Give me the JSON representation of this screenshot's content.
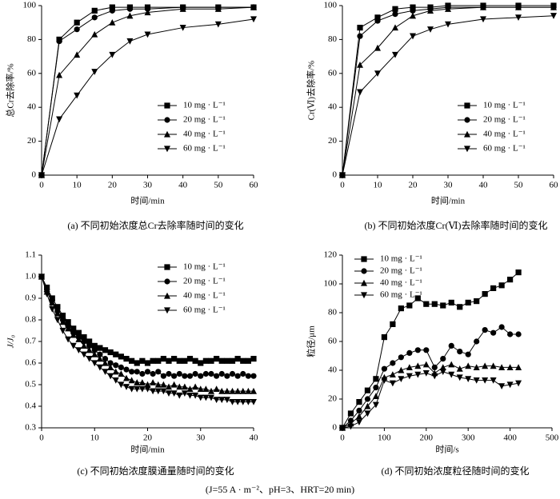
{
  "chart_data": [
    {
      "type": "line",
      "caption": "(a) 不同初始浓度总Cr去除率随时间的变化",
      "x_label": "时间/min",
      "y_label": "总Cr去除率/%",
      "x": [
        0,
        5,
        10,
        15,
        20,
        25,
        30,
        40,
        50,
        60
      ],
      "xlim": [
        0,
        60
      ],
      "xticks": [
        0,
        10,
        20,
        30,
        40,
        50,
        60
      ],
      "ylim": [
        0,
        100
      ],
      "yticks": [
        0,
        20,
        40,
        60,
        80,
        100
      ],
      "legend": "right",
      "series": [
        {
          "name": "10 mg · L⁻¹",
          "color": "#000000",
          "marker": "square",
          "values": [
            0,
            80,
            90,
            97,
            99,
            99,
            99,
            99,
            99,
            99
          ]
        },
        {
          "name": "20 mg · L⁻¹",
          "color": "#000000",
          "marker": "circle",
          "values": [
            0,
            79,
            86,
            93,
            97,
            98,
            98,
            99,
            99,
            99
          ]
        },
        {
          "name": "40 mg · L⁻¹",
          "color": "#000000",
          "marker": "triangle-up",
          "values": [
            0,
            59,
            71,
            83,
            90,
            94,
            96,
            98,
            98,
            99
          ]
        },
        {
          "name": "60 mg · L⁻¹",
          "color": "#000000",
          "marker": "triangle-down",
          "values": [
            0,
            33,
            47,
            61,
            71,
            79,
            83,
            87,
            89,
            92
          ]
        }
      ]
    },
    {
      "type": "line",
      "caption": "(b) 不同初始浓度Cr(Ⅵ)去除率随时间的变化",
      "x_label": "时间/min",
      "y_label": "Cr(Ⅵ)去除率/%",
      "x": [
        0,
        5,
        10,
        15,
        20,
        25,
        30,
        40,
        50,
        60
      ],
      "xlim": [
        0,
        60
      ],
      "xticks": [
        0,
        10,
        20,
        30,
        40,
        50,
        60
      ],
      "ylim": [
        0,
        100
      ],
      "yticks": [
        0,
        20,
        40,
        60,
        80,
        100
      ],
      "legend": "right",
      "series": [
        {
          "name": "10 mg · L⁻¹",
          "color": "#000000",
          "marker": "square",
          "values": [
            0,
            87,
            93,
            98,
            99,
            99,
            100,
            100,
            100,
            100
          ]
        },
        {
          "name": "20 mg · L⁻¹",
          "color": "#000000",
          "marker": "circle",
          "values": [
            0,
            82,
            91,
            95,
            97,
            98,
            99,
            99,
            99,
            99
          ]
        },
        {
          "name": "40 mg · L⁻¹",
          "color": "#000000",
          "marker": "triangle-up",
          "values": [
            0,
            65,
            75,
            87,
            94,
            97,
            98,
            99,
            99,
            99
          ]
        },
        {
          "name": "60 mg · L⁻¹",
          "color": "#000000",
          "marker": "triangle-down",
          "values": [
            0,
            49,
            60,
            71,
            82,
            86,
            89,
            92,
            93,
            94
          ]
        }
      ]
    },
    {
      "type": "line",
      "caption": "(c) 不同初始浓度膜通量随时间的变化",
      "x_label": "时间/min",
      "y_label": "J/J₀",
      "x": [
        0,
        1,
        2,
        3,
        4,
        5,
        6,
        7,
        8,
        9,
        10,
        11,
        12,
        13,
        14,
        15,
        16,
        17,
        18,
        19,
        20,
        21,
        22,
        23,
        24,
        25,
        26,
        27,
        28,
        29,
        30,
        31,
        32,
        33,
        34,
        35,
        36,
        37,
        38,
        39,
        40
      ],
      "xlim": [
        0,
        40
      ],
      "xticks": [
        0,
        10,
        20,
        30,
        40
      ],
      "ylim": [
        0.3,
        1.1
      ],
      "yticks": [
        0.3,
        0.4,
        0.5,
        0.6,
        0.7,
        0.8,
        0.9,
        {
          "value": 1,
          "label": "1.0"
        },
        1.1
      ],
      "legend": "upper right",
      "series": [
        {
          "name": "10 mg · L⁻¹",
          "color": "#000000",
          "marker": "square",
          "values": [
            1.0,
            0.95,
            0.9,
            0.86,
            0.82,
            0.79,
            0.76,
            0.74,
            0.72,
            0.7,
            0.68,
            0.67,
            0.66,
            0.65,
            0.64,
            0.63,
            0.62,
            0.61,
            0.6,
            0.61,
            0.6,
            0.61,
            0.61,
            0.62,
            0.61,
            0.62,
            0.61,
            0.61,
            0.62,
            0.61,
            0.6,
            0.61,
            0.61,
            0.62,
            0.61,
            0.61,
            0.61,
            0.62,
            0.61,
            0.61,
            0.62
          ]
        },
        {
          "name": "20 mg · L⁻¹",
          "color": "#000000",
          "marker": "circle",
          "values": [
            1.0,
            0.94,
            0.89,
            0.84,
            0.8,
            0.77,
            0.74,
            0.72,
            0.7,
            0.68,
            0.66,
            0.64,
            0.62,
            0.6,
            0.59,
            0.58,
            0.57,
            0.56,
            0.56,
            0.55,
            0.56,
            0.55,
            0.56,
            0.54,
            0.55,
            0.54,
            0.55,
            0.54,
            0.54,
            0.55,
            0.54,
            0.55,
            0.55,
            0.54,
            0.55,
            0.54,
            0.55,
            0.54,
            0.55,
            0.54,
            0.54
          ]
        },
        {
          "name": "40 mg · L⁻¹",
          "color": "#000000",
          "marker": "triangle-up",
          "values": [
            1.0,
            0.93,
            0.88,
            0.83,
            0.79,
            0.76,
            0.73,
            0.71,
            0.68,
            0.66,
            0.64,
            0.62,
            0.6,
            0.58,
            0.56,
            0.55,
            0.53,
            0.52,
            0.51,
            0.51,
            0.5,
            0.51,
            0.5,
            0.5,
            0.49,
            0.5,
            0.49,
            0.49,
            0.48,
            0.49,
            0.48,
            0.48,
            0.47,
            0.48,
            0.47,
            0.47,
            0.47,
            0.47,
            0.47,
            0.47,
            0.47
          ]
        },
        {
          "name": "60 mg · L⁻¹",
          "color": "#000000",
          "marker": "triangle-down",
          "values": [
            1.0,
            0.92,
            0.85,
            0.8,
            0.75,
            0.71,
            0.68,
            0.66,
            0.64,
            0.62,
            0.6,
            0.58,
            0.56,
            0.54,
            0.52,
            0.5,
            0.49,
            0.48,
            0.48,
            0.48,
            0.48,
            0.47,
            0.47,
            0.47,
            0.46,
            0.46,
            0.45,
            0.46,
            0.45,
            0.45,
            0.44,
            0.44,
            0.44,
            0.43,
            0.43,
            0.43,
            0.42,
            0.42,
            0.42,
            0.42,
            0.42
          ]
        }
      ]
    },
    {
      "type": "line",
      "caption": "(d) 不同初始浓度粒径随时间的变化",
      "x_label": "时间/s",
      "y_label": "粒径/μm",
      "x": [
        0,
        20,
        40,
        60,
        80,
        100,
        120,
        140,
        160,
        180,
        200,
        220,
        240,
        260,
        280,
        300,
        320,
        340,
        360,
        380,
        400,
        420
      ],
      "xlim": [
        0,
        500
      ],
      "xticks": [
        0,
        100,
        200,
        300,
        400,
        500
      ],
      "ylim": [
        0,
        120
      ],
      "yticks": [
        0,
        20,
        40,
        60,
        80,
        100,
        120
      ],
      "legend": "upper left",
      "series": [
        {
          "name": "10 mg · L⁻¹",
          "color": "#000000",
          "marker": "square",
          "values": [
            0,
            10,
            18,
            26,
            34,
            63,
            72,
            83,
            85,
            90,
            86,
            86,
            85,
            87,
            84,
            87,
            88,
            93,
            97,
            99,
            103,
            108
          ]
        },
        {
          "name": "20 mg · L⁻¹",
          "color": "#000000",
          "marker": "circle",
          "values": [
            0,
            5,
            12,
            20,
            28,
            41,
            45,
            49,
            52,
            54,
            54,
            42,
            48,
            57,
            53,
            51,
            60,
            68,
            66,
            70,
            65,
            65
          ]
        },
        {
          "name": "40 mg · L⁻¹",
          "color": "#000000",
          "marker": "triangle-up",
          "values": [
            0,
            3,
            8,
            15,
            22,
            35,
            37,
            40,
            42,
            43,
            44,
            38,
            42,
            44,
            41,
            43,
            42,
            43,
            43,
            42,
            42,
            42
          ]
        },
        {
          "name": "60 mg · L⁻¹",
          "color": "#000000",
          "marker": "triangle-down",
          "values": [
            0,
            1,
            4,
            10,
            16,
            33,
            31,
            34,
            36,
            37,
            38,
            36,
            39,
            37,
            35,
            34,
            33,
            33,
            33,
            29,
            30,
            31
          ]
        }
      ]
    }
  ],
  "note": "(J=55 A · m⁻²、pH=3、HRT=20 min)"
}
